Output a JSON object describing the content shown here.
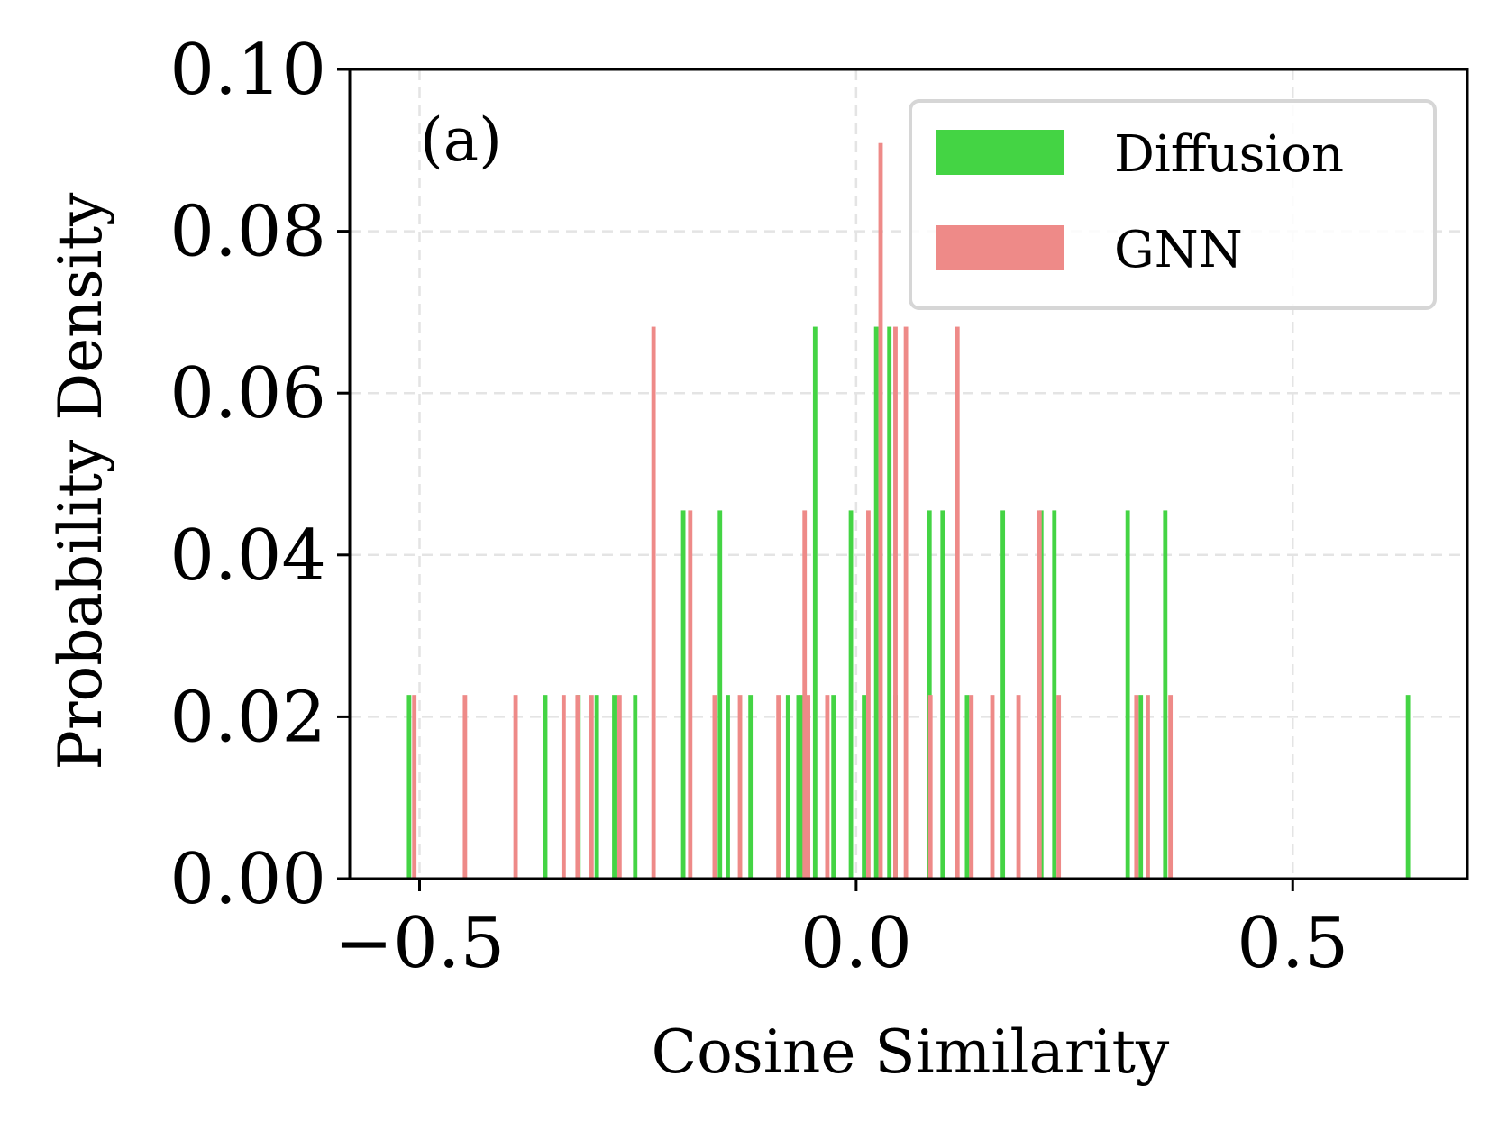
{
  "chart_data": {
    "type": "bar",
    "title": "",
    "panel_label": "(a)",
    "xlabel": "Cosine Similarity",
    "ylabel": "Probability Density",
    "xlim": [
      -0.58,
      0.7
    ],
    "ylim": [
      0,
      0.1
    ],
    "x_ticks": [
      -0.5,
      0.0,
      0.5
    ],
    "x_tick_labels": [
      "−0.5",
      "0.0",
      "0.5"
    ],
    "y_ticks": [
      0.0,
      0.02,
      0.04,
      0.06,
      0.08,
      0.1
    ],
    "y_tick_labels": [
      "0.00",
      "0.02",
      "0.04",
      "0.06",
      "0.08",
      "0.10"
    ],
    "grid": true,
    "legend_position": "top-right",
    "bar_width": 0.005,
    "series": [
      {
        "name": "Diffusion",
        "color": "#44d444",
        "x": [
          -0.512,
          -0.356,
          -0.318,
          -0.297,
          -0.277,
          -0.253,
          -0.198,
          -0.156,
          -0.147,
          -0.121,
          -0.078,
          -0.066,
          -0.062,
          -0.047,
          -0.026,
          -0.006,
          0.009,
          0.023,
          0.038,
          0.045,
          0.084,
          0.099,
          0.127,
          0.168,
          0.212,
          0.227,
          0.311,
          0.326,
          0.354,
          0.632
        ],
        "values": [
          0.0227,
          0.0227,
          0.0227,
          0.0227,
          0.0227,
          0.0227,
          0.0455,
          0.0455,
          0.0227,
          0.0227,
          0.0227,
          0.0227,
          0.0227,
          0.0682,
          0.0227,
          0.0455,
          0.0227,
          0.0682,
          0.0682,
          0.0227,
          0.0455,
          0.0455,
          0.0227,
          0.0455,
          0.0455,
          0.0455,
          0.0455,
          0.0227,
          0.0455,
          0.0227
        ]
      },
      {
        "name": "GNN",
        "color": "#ee8a88",
        "x": [
          -0.506,
          -0.448,
          -0.39,
          -0.335,
          -0.319,
          -0.303,
          -0.271,
          -0.232,
          -0.19,
          -0.162,
          -0.133,
          -0.089,
          -0.059,
          -0.055,
          -0.033,
          0.014,
          0.028,
          0.045,
          0.057,
          0.085,
          0.116,
          0.132,
          0.156,
          0.186,
          0.21,
          0.232,
          0.321,
          0.334,
          0.36
        ],
        "values": [
          0.0227,
          0.0227,
          0.0227,
          0.0227,
          0.0227,
          0.0227,
          0.0227,
          0.0682,
          0.0455,
          0.0227,
          0.0227,
          0.0227,
          0.0455,
          0.0227,
          0.0227,
          0.0455,
          0.0909,
          0.0682,
          0.0682,
          0.0227,
          0.0682,
          0.0227,
          0.0227,
          0.0227,
          0.0455,
          0.0227,
          0.0227,
          0.0227,
          0.0227
        ]
      }
    ]
  }
}
